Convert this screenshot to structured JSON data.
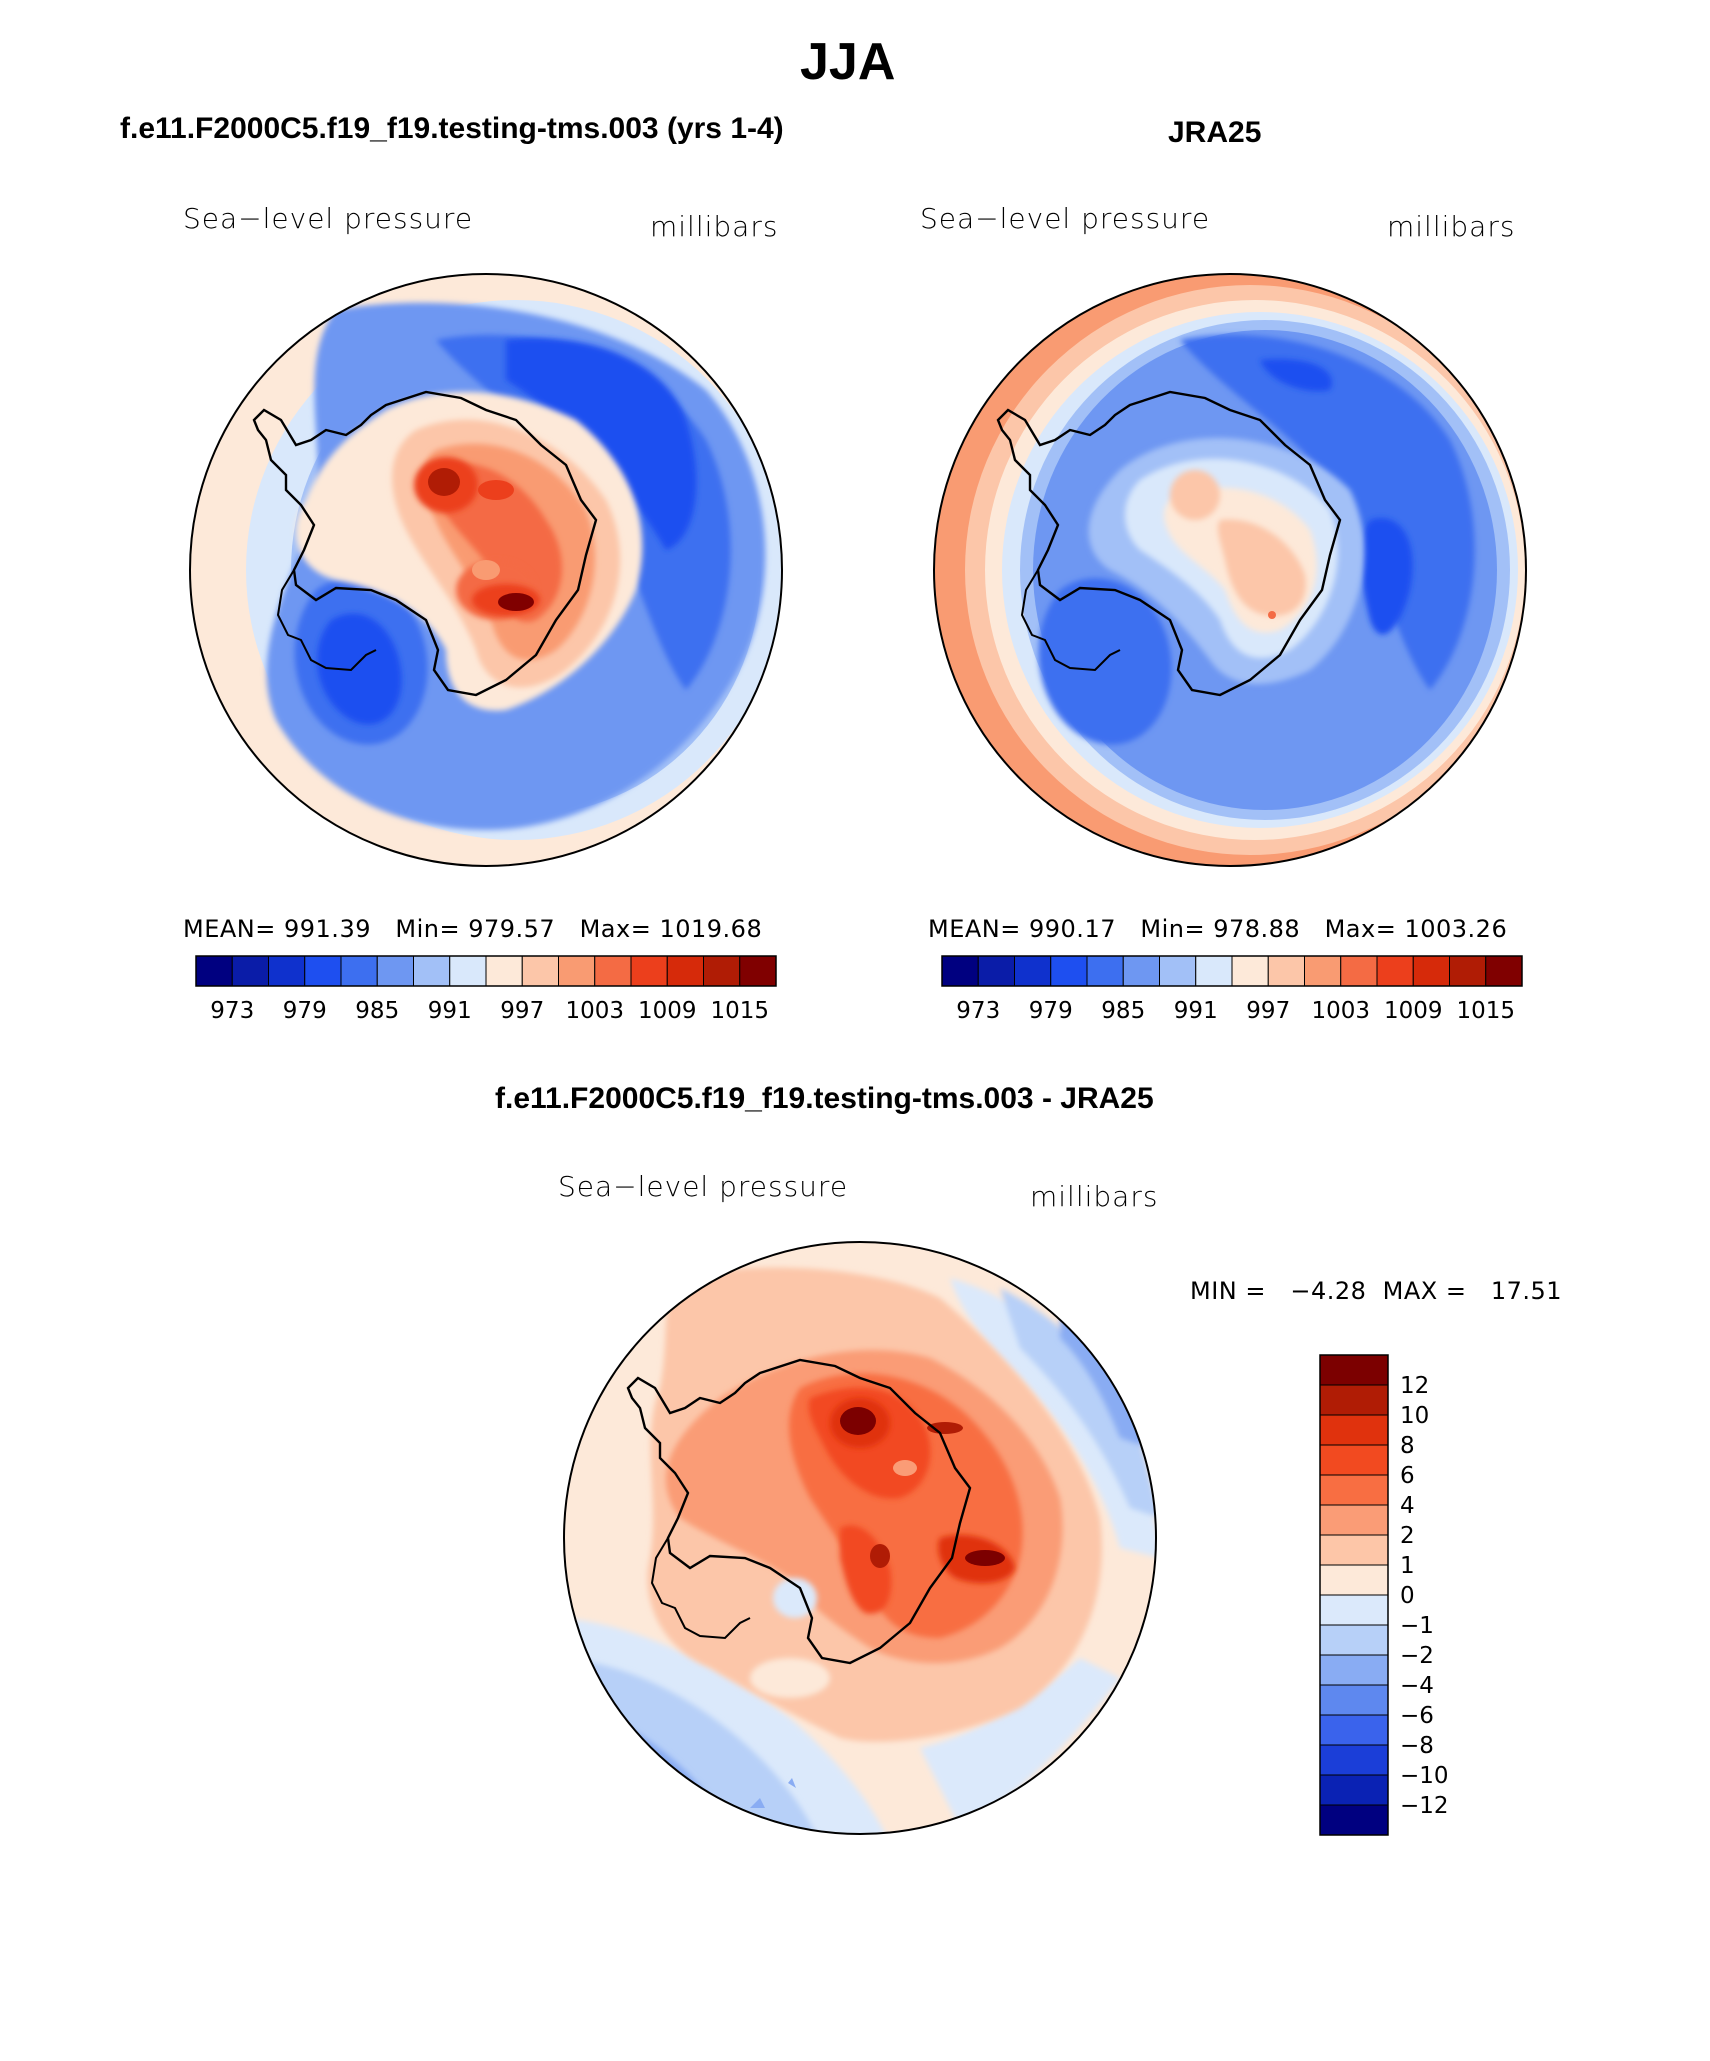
{
  "page_title": "JJA",
  "panels": [
    {
      "title": "f.e11.F2000C5.f19_f19.testing-tms.003 (yrs 1-4)",
      "left_label": "Sea−level pressure",
      "right_label": "millibars",
      "mean_label": "MEAN=",
      "mean": "991.39",
      "min_label": "Min=",
      "min": "979.57",
      "max_label": "Max=",
      "max": "1019.68"
    },
    {
      "title": "JRA25",
      "left_label": "Sea−level pressure",
      "right_label": "millibars",
      "mean_label": "MEAN=",
      "mean": "990.17",
      "min_label": "Min=",
      "min": "978.88",
      "max_label": "Max=",
      "max": "1003.26"
    },
    {
      "title": "f.e11.F2000C5.f19_f19.testing-tms.003 - JRA25",
      "left_label": "Sea−level pressure",
      "right_label": "millibars",
      "minmax_text": "MIN =   −4.28  MAX =   17.51"
    }
  ],
  "abs_colorbar": {
    "colors": [
      "#000080",
      "#0a1ca8",
      "#0f31cd",
      "#1e4ff0",
      "#3d6ff0",
      "#6e97f2",
      "#a2c0f7",
      "#d9e8fb",
      "#fde9d9",
      "#fcc6a9",
      "#f99b72",
      "#f46b44",
      "#ec3f1c",
      "#d62a0a",
      "#b01c05",
      "#800000"
    ],
    "ticks": [
      "973",
      "979",
      "985",
      "991",
      "997",
      "1003",
      "1009",
      "1015"
    ]
  },
  "diff_colorbar": {
    "colors_top_to_bottom": [
      "#7c0000",
      "#b01c05",
      "#e0320d",
      "#f24a20",
      "#f86e42",
      "#fa9c76",
      "#fdc6a8",
      "#fde9d9",
      "#dbe9fb",
      "#b7d0f8",
      "#89acf3",
      "#5e88ef",
      "#3a63ec",
      "#1b3ed8",
      "#0a22b4",
      "#000080"
    ],
    "ticks": [
      "12",
      "10",
      "8",
      "6",
      "4",
      "2",
      "1",
      "0",
      "−1",
      "−2",
      "−4",
      "−6",
      "−8",
      "−10",
      "−12"
    ]
  }
}
